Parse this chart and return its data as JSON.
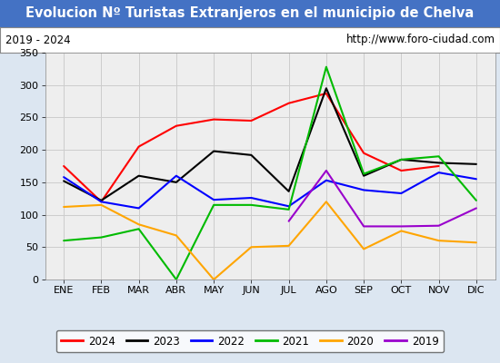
{
  "title": "Evolucion Nº Turistas Extranjeros en el municipio de Chelva",
  "subtitle_left": "2019 - 2024",
  "subtitle_right": "http://www.foro-ciudad.com",
  "title_bg_color": "#4472c4",
  "title_text_color": "#ffffff",
  "months": [
    "ENE",
    "FEB",
    "MAR",
    "ABR",
    "MAY",
    "JUN",
    "JUL",
    "AGO",
    "SEP",
    "OCT",
    "NOV",
    "DIC"
  ],
  "series": {
    "2024": [
      175,
      120,
      205,
      237,
      247,
      245,
      272,
      287,
      195,
      168,
      175,
      null
    ],
    "2023": [
      152,
      122,
      160,
      150,
      198,
      192,
      136,
      295,
      160,
      185,
      180,
      178
    ],
    "2022": [
      158,
      120,
      110,
      160,
      123,
      126,
      113,
      153,
      138,
      133,
      165,
      155
    ],
    "2021": [
      60,
      65,
      78,
      0,
      115,
      115,
      108,
      328,
      163,
      185,
      190,
      122
    ],
    "2020": [
      112,
      115,
      85,
      68,
      0,
      50,
      52,
      120,
      47,
      75,
      60,
      57
    ],
    "2019": [
      null,
      null,
      null,
      null,
      null,
      null,
      90,
      168,
      82,
      82,
      83,
      110
    ]
  },
  "colors": {
    "2024": "#ff0000",
    "2023": "#000000",
    "2022": "#0000ff",
    "2021": "#00bb00",
    "2020": "#ffa500",
    "2019": "#9900cc"
  },
  "ylim": [
    0,
    350
  ],
  "yticks": [
    0,
    50,
    100,
    150,
    200,
    250,
    300,
    350
  ],
  "grid_color": "#cccccc",
  "plot_bg_color": "#eeeeee",
  "outer_bg_color": "#dce6f1",
  "box_bg_color": "#ffffff",
  "title_fontsize": 10.5,
  "subtitle_fontsize": 8.5,
  "tick_fontsize": 8,
  "legend_fontsize": 8.5
}
